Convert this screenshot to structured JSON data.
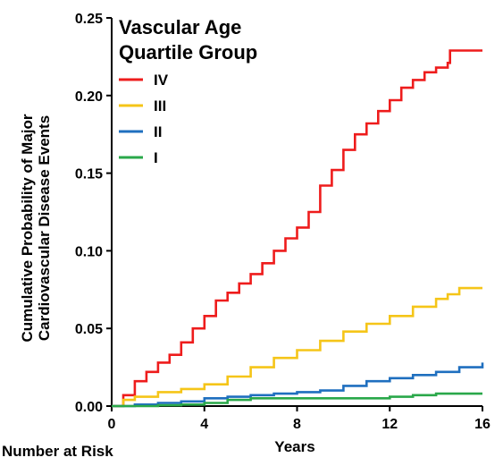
{
  "chart_data": {
    "type": "line",
    "title": "",
    "xlabel": "Years",
    "ylabel_lines": [
      "Cumulative Probability of Major",
      "Cardiovascular Disease Events"
    ],
    "xlim": [
      0,
      16
    ],
    "ylim": [
      0,
      0.25
    ],
    "x_ticks": [
      "0",
      "4",
      "8",
      "12",
      "16"
    ],
    "y_ticks": [
      "0.00",
      "0.05",
      "0.10",
      "0.15",
      "0.20",
      "0.25"
    ],
    "grid": false,
    "legend": {
      "title_lines": [
        "Vascular Age",
        "Quartile Group"
      ],
      "position": "top-left"
    },
    "series": [
      {
        "name": "IV",
        "color": "#ee1c1c",
        "x": [
          0,
          0.5,
          1,
          1.5,
          2,
          2.5,
          3,
          3.5,
          4,
          4.5,
          5,
          5.5,
          6,
          6.5,
          7,
          7.5,
          8,
          8.5,
          9,
          9.5,
          10,
          10.5,
          11,
          11.5,
          12,
          12.5,
          13,
          13.5,
          14,
          14.5,
          14.6,
          16
        ],
        "y": [
          0,
          0.007,
          0.016,
          0.022,
          0.028,
          0.033,
          0.041,
          0.05,
          0.058,
          0.068,
          0.073,
          0.079,
          0.085,
          0.092,
          0.1,
          0.108,
          0.115,
          0.125,
          0.142,
          0.152,
          0.165,
          0.175,
          0.182,
          0.19,
          0.197,
          0.205,
          0.21,
          0.215,
          0.218,
          0.221,
          0.229,
          0.229
        ]
      },
      {
        "name": "III",
        "color": "#f5c518",
        "x": [
          0,
          0.5,
          1,
          2,
          3,
          4,
          5,
          6,
          7,
          8,
          9,
          10,
          11,
          12,
          13,
          14,
          14.5,
          15,
          16
        ],
        "y": [
          0,
          0.004,
          0.006,
          0.009,
          0.011,
          0.014,
          0.019,
          0.025,
          0.031,
          0.036,
          0.042,
          0.048,
          0.053,
          0.058,
          0.064,
          0.069,
          0.072,
          0.076,
          0.076
        ]
      },
      {
        "name": "II",
        "color": "#1f6fbf",
        "x": [
          0,
          1,
          2,
          3,
          4,
          5,
          6,
          7,
          8,
          9,
          10,
          11,
          12,
          13,
          14,
          15,
          16
        ],
        "y": [
          0,
          0.001,
          0.002,
          0.003,
          0.005,
          0.006,
          0.007,
          0.008,
          0.009,
          0.01,
          0.013,
          0.016,
          0.018,
          0.02,
          0.022,
          0.025,
          0.028
        ]
      },
      {
        "name": "I",
        "color": "#2aa84a",
        "x": [
          0,
          2,
          3,
          4,
          5,
          6,
          8,
          10,
          12,
          13,
          14,
          15,
          16
        ],
        "y": [
          0,
          0.0005,
          0.001,
          0.002,
          0.004,
          0.005,
          0.005,
          0.005,
          0.006,
          0.007,
          0.008,
          0.008,
          0.008
        ]
      }
    ]
  },
  "footer": {
    "number_at_risk_label": "Number at Risk"
  }
}
